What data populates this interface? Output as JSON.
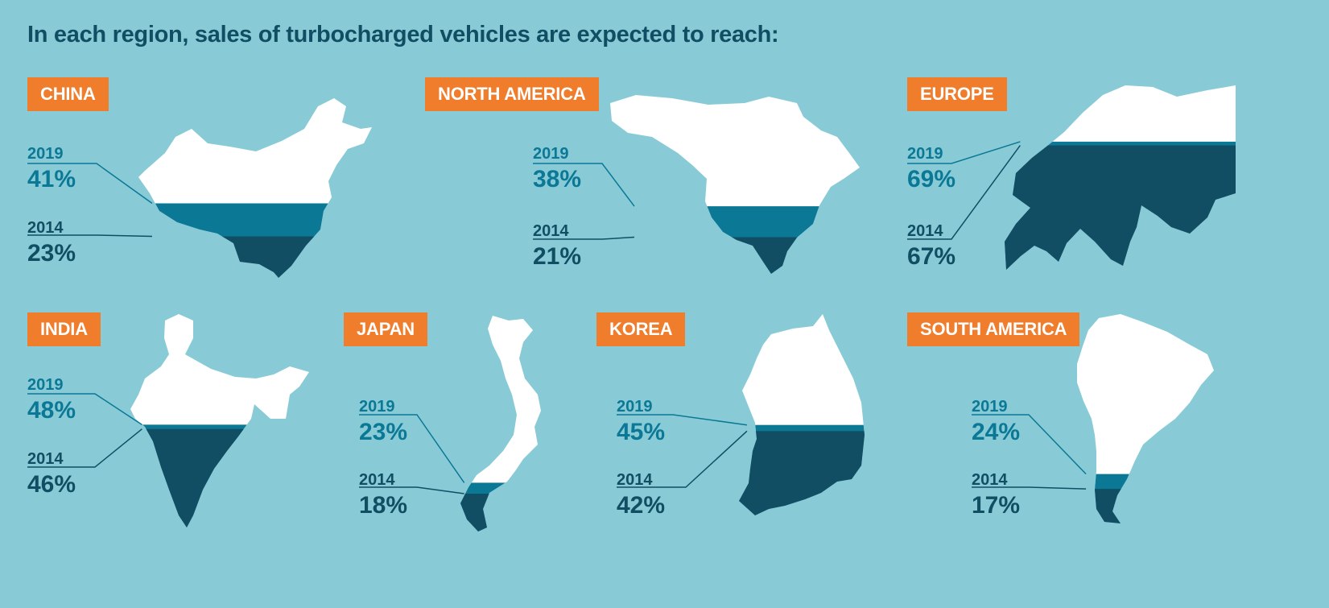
{
  "headline": "In each region, sales of turbocharged vehicles are expected to reach:",
  "colors": {
    "background": "#88cbd6",
    "tag": "#f07d2c",
    "map_base": "#ffffff",
    "fill_2019": "#0b7896",
    "fill_2014": "#114e63"
  },
  "chart_data": {
    "type": "bar",
    "series": [
      {
        "name": "2019",
        "values": [
          41,
          38,
          69,
          48,
          23,
          45,
          24
        ]
      },
      {
        "name": "2014",
        "values": [
          23,
          21,
          67,
          46,
          18,
          42,
          17
        ]
      }
    ],
    "categories": [
      "CHINA",
      "NORTH AMERICA",
      "EUROPE",
      "INDIA",
      "JAPAN",
      "KOREA",
      "SOUTH AMERICA"
    ],
    "ylim": [
      0,
      100
    ]
  },
  "regions": [
    {
      "name": "CHINA",
      "y2019": "2019",
      "p2019": "41%",
      "y2014": "2014",
      "p2014": "23%"
    },
    {
      "name": "NORTH AMERICA",
      "y2019": "2019",
      "p2019": "38%",
      "y2014": "2014",
      "p2014": "21%"
    },
    {
      "name": "EUROPE",
      "y2019": "2019",
      "p2019": "69%",
      "y2014": "2014",
      "p2014": "67%"
    },
    {
      "name": "INDIA",
      "y2019": "2019",
      "p2019": "48%",
      "y2014": "2014",
      "p2014": "46%"
    },
    {
      "name": "JAPAN",
      "y2019": "2019",
      "p2019": "23%",
      "y2014": "2014",
      "p2014": "18%"
    },
    {
      "name": "KOREA",
      "y2019": "2019",
      "p2019": "45%",
      "y2014": "2014",
      "p2014": "42%"
    },
    {
      "name": "SOUTH AMERICA",
      "y2019": "2019",
      "p2019": "24%",
      "y2014": "2014",
      "p2014": "17%"
    }
  ]
}
